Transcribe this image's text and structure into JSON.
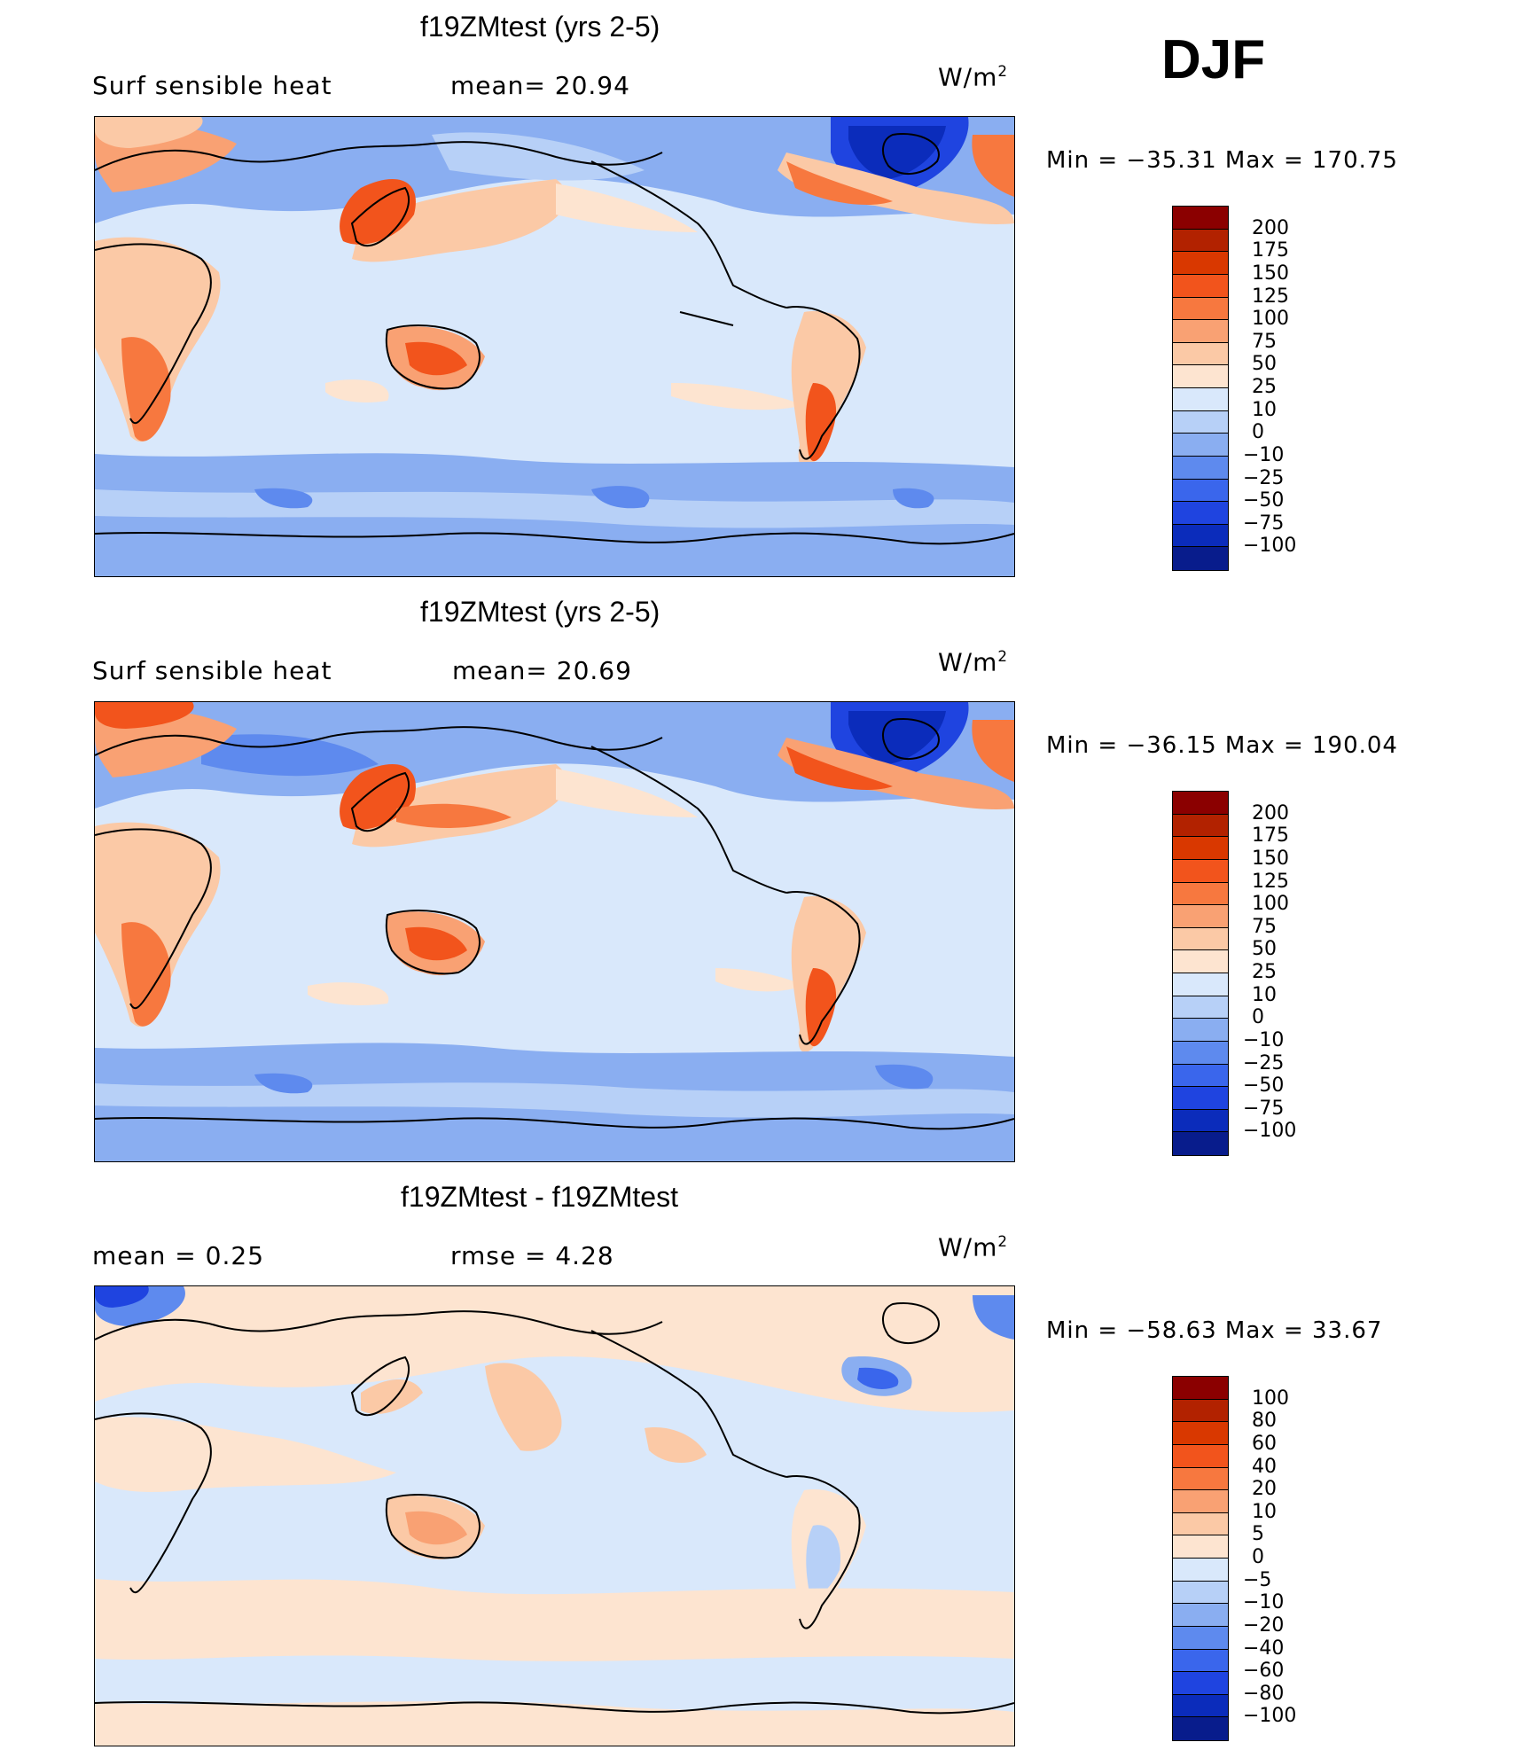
{
  "header": {
    "season": "DJF"
  },
  "panels": [
    {
      "title": "f19ZMtest (yrs 2-5)",
      "left_label": "Surf  sensible  heat",
      "center_label": "mean=   20.94",
      "units": "W/m",
      "units_sup": "2",
      "minmax": "Min  =  −35.31  Max  =  170.75",
      "colorbar": {
        "colors": [
          "#8b0000",
          "#b22200",
          "#d93800",
          "#f2541c",
          "#f7783f",
          "#f9a173",
          "#fbc9a6",
          "#fde4d0",
          "#d9e8fb",
          "#b7d0f7",
          "#8aaef1",
          "#5e8aee",
          "#3a66ec",
          "#1f44e0",
          "#0b2cbb",
          "#081c8c"
        ],
        "labels": [
          "200",
          "175",
          "150",
          "125",
          "100",
          "75",
          "50",
          "25",
          "10",
          "0",
          "−10",
          "−25",
          "−50",
          "−75",
          "−100"
        ]
      }
    },
    {
      "title": "f19ZMtest (yrs 2-5)",
      "left_label": "Surf  sensible  heat",
      "center_label": "mean=   20.69",
      "units": "W/m",
      "units_sup": "2",
      "minmax": "Min  =  −36.15  Max  =  190.04",
      "colorbar": {
        "colors": [
          "#8b0000",
          "#b22200",
          "#d93800",
          "#f2541c",
          "#f7783f",
          "#f9a173",
          "#fbc9a6",
          "#fde4d0",
          "#d9e8fb",
          "#b7d0f7",
          "#8aaef1",
          "#5e8aee",
          "#3a66ec",
          "#1f44e0",
          "#0b2cbb",
          "#081c8c"
        ],
        "labels": [
          "200",
          "175",
          "150",
          "125",
          "100",
          "75",
          "50",
          "25",
          "10",
          "0",
          "−10",
          "−25",
          "−50",
          "−75",
          "−100"
        ]
      }
    },
    {
      "title": "f19ZMtest - f19ZMtest",
      "left_label": "mean  =      0.25",
      "center_label": "rmse  =      4.28",
      "units": "W/m",
      "units_sup": "2",
      "minmax": "Min  =  −58.63  Max  =     33.67",
      "colorbar": {
        "colors": [
          "#8b0000",
          "#b22200",
          "#d93800",
          "#f2541c",
          "#f7783f",
          "#f9a173",
          "#fbc9a6",
          "#fde4d0",
          "#d9e8fb",
          "#b7d0f7",
          "#8aaef1",
          "#5e8aee",
          "#3a66ec",
          "#1f44e0",
          "#0b2cbb",
          "#081c8c"
        ],
        "labels": [
          "100",
          "80",
          "60",
          "40",
          "20",
          "10",
          "5",
          "0",
          "−5",
          "−10",
          "−20",
          "−40",
          "−60",
          "−80",
          "−100"
        ]
      }
    }
  ]
}
